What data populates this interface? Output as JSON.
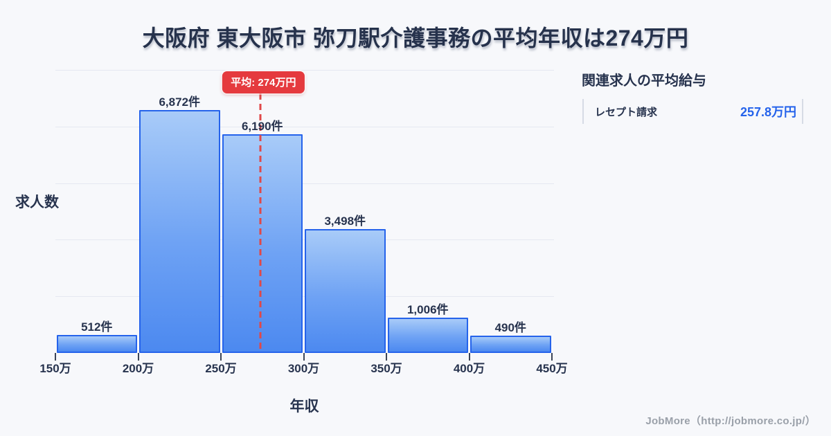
{
  "page": {
    "title": "大阪府 東大阪市 弥刀駅介護事務の平均年収は274万円",
    "footer_credit": "JobMore（http://jobmore.co.jp/）"
  },
  "chart_data": {
    "type": "bar",
    "title": "大阪府 東大阪市 弥刀駅介護事務の平均年収は274万円",
    "xlabel": "年収",
    "ylabel": "求人数",
    "categories": [
      "150万-200万",
      "200万-250万",
      "250万-300万",
      "300万-350万",
      "350万-400万",
      "400万-450万"
    ],
    "values": [
      512,
      6872,
      6190,
      3498,
      1006,
      490
    ],
    "bar_labels": [
      "512件",
      "6,872件",
      "6,190件",
      "3,498件",
      "1,006件",
      "490件"
    ],
    "x_tick_labels": [
      "150万",
      "200万",
      "250万",
      "300万",
      "350万",
      "400万",
      "450万"
    ],
    "x_range_man_yen": [
      150,
      450
    ],
    "ylim": [
      0,
      8000
    ],
    "grid": true,
    "gridline_count": 5,
    "legend": false,
    "average": {
      "x_value_man_yen": 274,
      "badge_label": "平均: 274万円"
    },
    "colors": {
      "bar_fill_top": "#a8cbf8",
      "bar_fill_bottom": "#4c89f0",
      "bar_border": "#2563eb",
      "average_line": "#e04848",
      "average_badge_bg": "#e53a3e",
      "grid_line": "#e5e8f1",
      "text_dark": "#27334e",
      "value_blue": "#2563eb",
      "background": "#f7f8fb"
    }
  },
  "side_panel": {
    "heading": "関連求人の平均給与",
    "rows": [
      {
        "label": "レセプト請求",
        "value": "257.8万円"
      }
    ]
  }
}
